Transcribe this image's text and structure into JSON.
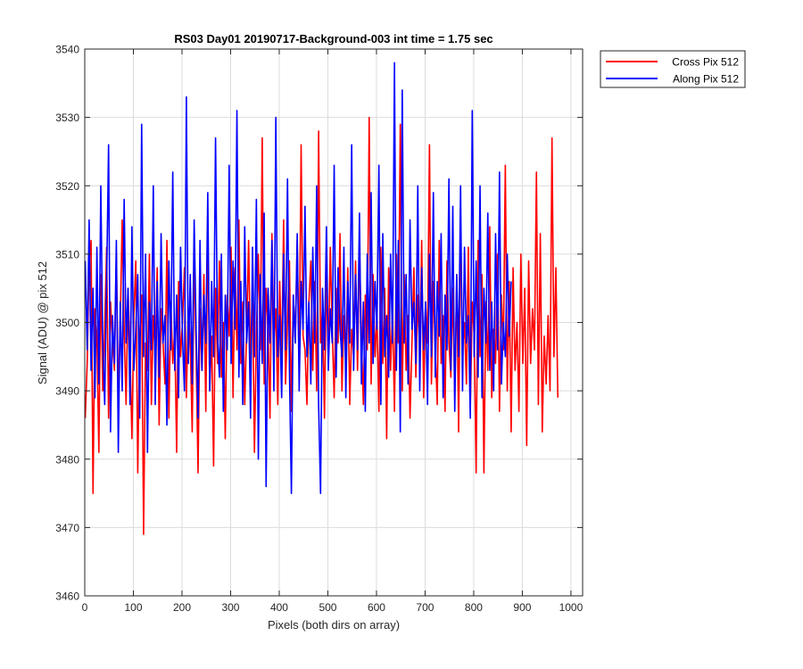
{
  "chart_data": {
    "type": "line",
    "title": "RS03 Day01 20190717-Background-003 int time = 1.75 sec",
    "xlabel": "Pixels (both dirs on array)",
    "ylabel": "Signal (ADU) @ pix 512",
    "xlim": [
      0,
      1024
    ],
    "ylim": [
      3460,
      3540
    ],
    "xticks": [
      0,
      100,
      200,
      300,
      400,
      500,
      600,
      700,
      800,
      900,
      1000
    ],
    "yticks": [
      3460,
      3470,
      3480,
      3490,
      3500,
      3510,
      3520,
      3530,
      3540
    ],
    "grid": true,
    "legend_position": "outside-top-right",
    "series": [
      {
        "name": "Cross Pix 512",
        "color": "#ff0000",
        "x_start": 1,
        "x_step": 4,
        "values": [
          3486,
          3494,
          3509,
          3512,
          3475,
          3502,
          3498,
          3481,
          3507,
          3490,
          3499,
          3511,
          3486,
          3503,
          3497,
          3493,
          3510,
          3489,
          3500,
          3515,
          3499,
          3488,
          3505,
          3496,
          3483,
          3501,
          3509,
          3478,
          3498,
          3504,
          3469,
          3497,
          3493,
          3510,
          3488,
          3501,
          3495,
          3508,
          3485,
          3502,
          3497,
          3491,
          3512,
          3486,
          3503,
          3494,
          3499,
          3481,
          3506,
          3495,
          3500,
          3508,
          3489,
          3502,
          3497,
          3484,
          3510,
          3496,
          3478,
          3502,
          3493,
          3507,
          3487,
          3514,
          3490,
          3498,
          3479,
          3505,
          3494,
          3509,
          3492,
          3500,
          3483,
          3504,
          3498,
          3511,
          3489,
          3508,
          3496,
          3515,
          3494,
          3503,
          3488,
          3499,
          3512,
          3493,
          3506,
          3481,
          3498,
          3510,
          3496,
          3527,
          3491,
          3505,
          3499,
          3486,
          3513,
          3497,
          3502,
          3488,
          3506,
          3494,
          3515,
          3491,
          3500,
          3509,
          3487,
          3504,
          3497,
          3512,
          3493,
          3526,
          3498,
          3496,
          3488,
          3503,
          3509,
          3493,
          3506,
          3490,
          3528,
          3497,
          3502,
          3486,
          3508,
          3494,
          3511,
          3499,
          3489,
          3505,
          3497,
          3513,
          3490,
          3501,
          3494,
          3508,
          3488,
          3499,
          3495,
          3509,
          3493,
          3511,
          3498,
          3488,
          3504,
          3496,
          3530,
          3491,
          3507,
          3495,
          3501,
          3487,
          3511,
          3494,
          3505,
          3483,
          3508,
          3493,
          3502,
          3487,
          3510,
          3497,
          3529,
          3490,
          3507,
          3493,
          3501,
          3486,
          3497,
          3508,
          3492,
          3504,
          3495,
          3512,
          3489,
          3503,
          3497,
          3526,
          3491,
          3506,
          3496,
          3488,
          3512,
          3494,
          3501,
          3487,
          3509,
          3497,
          3492,
          3505,
          3489,
          3507,
          3484,
          3514,
          3496,
          3500,
          3491,
          3511,
          3487,
          3503,
          3498,
          3478,
          3512,
          3495,
          3507,
          3478,
          3503,
          3493,
          3514,
          3489,
          3499,
          3494,
          3510,
          3487,
          3504,
          3496,
          3523,
          3490,
          3506,
          3484,
          3508,
          3493,
          3500,
          3487,
          3510,
          3494,
          3505,
          3482,
          3509,
          3494,
          3502,
          3496,
          3522,
          3488,
          3513,
          3484,
          3498,
          3491,
          3501,
          3490,
          3527,
          3495,
          3508,
          3489
        ]
      },
      {
        "name": "Along Pix 512",
        "color": "#0000ff",
        "x_start": 1,
        "x_step": 4,
        "values": [
          3509,
          3496,
          3515,
          3493,
          3505,
          3489,
          3511,
          3491,
          3520,
          3497,
          3488,
          3506,
          3526,
          3484,
          3501,
          3494,
          3512,
          3481,
          3503,
          3490,
          3518,
          3497,
          3505,
          3488,
          3514,
          3493,
          3499,
          3507,
          3486,
          3529,
          3495,
          3510,
          3481,
          3503,
          3496,
          3520,
          3488,
          3506,
          3492,
          3513,
          3497,
          3501,
          3485,
          3509,
          3496,
          3522,
          3493,
          3504,
          3489,
          3511,
          3498,
          3490,
          3533,
          3494,
          3507,
          3491,
          3515,
          3499,
          3486,
          3512,
          3493,
          3504,
          3497,
          3519,
          3490,
          3506,
          3495,
          3527,
          3498,
          3492,
          3510,
          3487,
          3504,
          3496,
          3523,
          3494,
          3509,
          3499,
          3531,
          3492,
          3506,
          3488,
          3514,
          3497,
          3503,
          3486,
          3511,
          3495,
          3518,
          3480,
          3507,
          3494,
          3516,
          3476,
          3505,
          3497,
          3512,
          3490,
          3530,
          3495,
          3501,
          3489,
          3510,
          3496,
          3521,
          3493,
          3475,
          3504,
          3497,
          3513,
          3490,
          3506,
          3499,
          3517,
          3495,
          3503,
          3491,
          3511,
          3497,
          3520,
          3488,
          3475,
          3505,
          3496,
          3514,
          3493,
          3502,
          3497,
          3523,
          3492,
          3508,
          3499,
          3495,
          3511,
          3489,
          3506,
          3497,
          3526,
          3493,
          3507,
          3496,
          3516,
          3491,
          3503,
          3487,
          3510,
          3497,
          3519,
          3494,
          3506,
          3499,
          3523,
          3488,
          3513,
          3495,
          3501,
          3492,
          3510,
          3497,
          3538,
          3493,
          3512,
          3484,
          3534,
          3497,
          3507,
          3491,
          3515,
          3499,
          3503,
          3494,
          3520,
          3490,
          3508,
          3496,
          3503,
          3488,
          3510,
          3495,
          3519,
          3492,
          3506,
          3498,
          3513,
          3489,
          3504,
          3496,
          3521,
          3493,
          3517,
          3487,
          3507,
          3495,
          3520,
          3490,
          3511,
          3497,
          3501,
          3486,
          3531,
          3495,
          3509,
          3492,
          3520,
          3489,
          3505,
          3497,
          3516,
          3493,
          3503,
          3490,
          3513,
          3496,
          3522,
          3491,
          3500,
          3495,
          3510,
          3498,
          3506
        ]
      }
    ]
  }
}
